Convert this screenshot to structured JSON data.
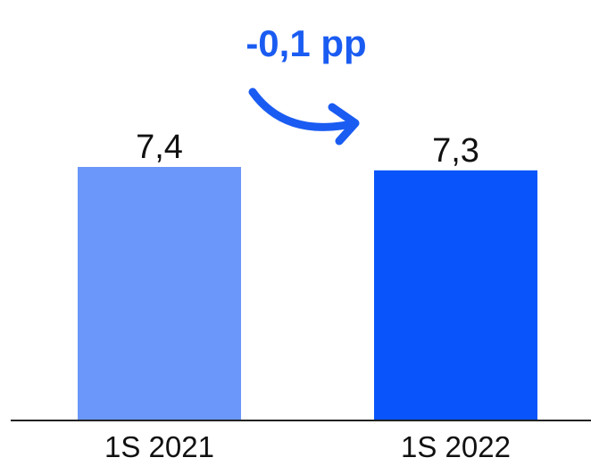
{
  "chart_data": {
    "type": "bar",
    "categories": [
      "1S 2021",
      "1S 2022"
    ],
    "values": [
      7.4,
      7.3
    ],
    "value_labels": [
      "7,4",
      "7,3"
    ],
    "colors": [
      "#6b97fb",
      "#0a55fb"
    ],
    "title": "",
    "xlabel": "",
    "ylabel": "",
    "ylim": [
      0,
      7.4
    ],
    "grid": false,
    "legend": "none",
    "annotation": {
      "text": "-0,1 pp",
      "color": "#1a5cf2",
      "icon": "curved-arrow-right-icon"
    }
  }
}
